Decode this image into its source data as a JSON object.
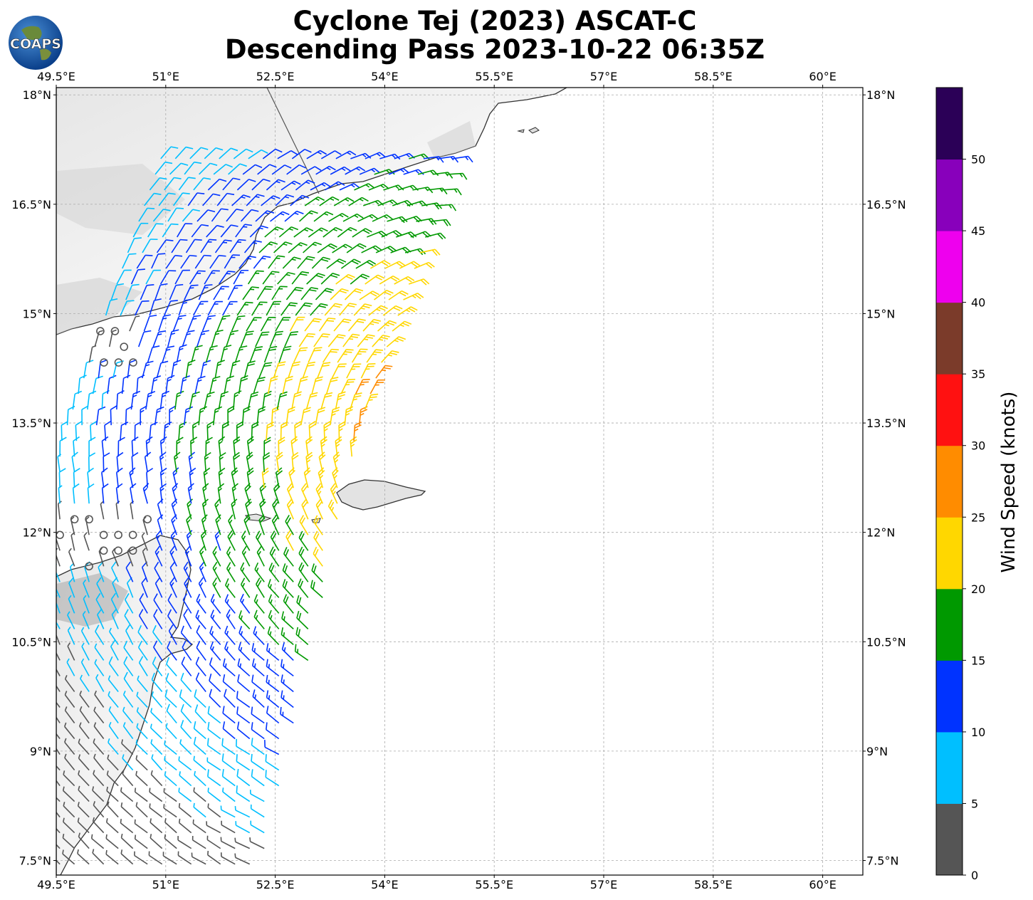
{
  "title": {
    "line1": "Cyclone Tej (2023) ASCAT-C",
    "line2": "Descending Pass 2023-10-22 06:35Z"
  },
  "logo": {
    "text": "COAPS"
  },
  "map": {
    "lon_ticks": [
      "49.5°E",
      "51°E",
      "52.5°E",
      "54°E",
      "55.5°E",
      "57°E",
      "58.5°E",
      "60°E"
    ],
    "lat_ticks": [
      "18°N",
      "16.5°N",
      "15°N",
      "13.5°N",
      "12°N",
      "10.5°N",
      "9°N",
      "7.5°N"
    ],
    "lon_range": [
      49.5,
      60.55
    ],
    "lat_range": [
      7.3,
      18.1
    ],
    "grid": true
  },
  "colorbar": {
    "label": "Wind Speed (knots)",
    "ticks": [
      "0",
      "5",
      "10",
      "15",
      "20",
      "25",
      "30",
      "35",
      "40",
      "45",
      "50"
    ],
    "colors": [
      "#555555",
      "#00bfff",
      "#0033ff",
      "#009900",
      "#ffd700",
      "#ff8c00",
      "#ff1111",
      "#7b3b2a",
      "#ee00ee",
      "#8800bb",
      "#2b0057"
    ]
  }
}
